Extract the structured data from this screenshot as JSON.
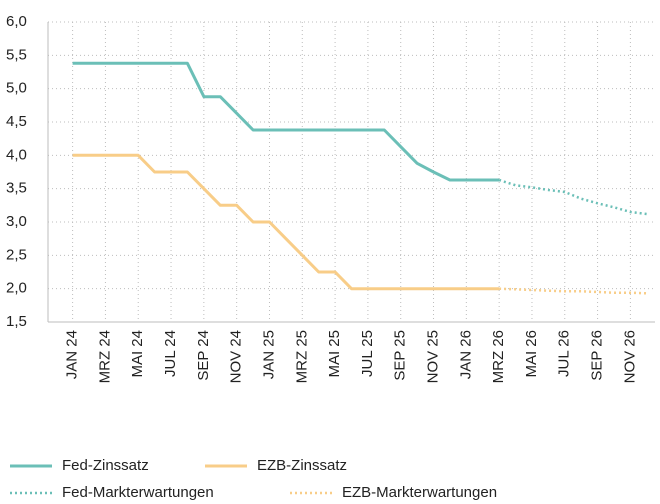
{
  "chart_data": {
    "type": "line",
    "categories": [
      null,
      "JAN 24",
      null,
      "MRZ 24",
      null,
      "MAI 24",
      null,
      "JUL 24",
      null,
      "SEP 24",
      null,
      "NOV 24",
      null,
      "JAN 25",
      null,
      "MRZ 25",
      null,
      "MAI 25",
      null,
      "JUL 25",
      null,
      "SEP 25",
      null,
      "NOV 25",
      null,
      "JAN 26",
      null,
      "MRZ 26",
      null,
      "MAI 26",
      null,
      "JUL 26",
      null,
      "SEP 26",
      null,
      "NOV 26",
      null
    ],
    "series": [
      {
        "name": "Fed-Zinssatz",
        "color": "#6bbfb7",
        "style": "solid",
        "values": [
          null,
          5.38,
          5.38,
          5.38,
          5.38,
          5.38,
          5.38,
          5.38,
          5.38,
          4.88,
          4.88,
          4.63,
          4.38,
          4.38,
          4.38,
          4.38,
          4.38,
          4.38,
          4.38,
          4.38,
          4.38,
          4.13,
          3.88,
          3.75,
          3.63,
          3.63,
          3.63,
          3.63,
          null,
          null,
          null,
          null,
          null,
          null,
          null,
          null,
          null
        ]
      },
      {
        "name": "EZB-Zinssatz",
        "color": "#f8cd88",
        "style": "solid",
        "values": [
          null,
          4.0,
          4.0,
          4.0,
          4.0,
          4.0,
          3.75,
          3.75,
          3.75,
          3.5,
          3.25,
          3.25,
          3.0,
          3.0,
          2.75,
          2.5,
          2.25,
          2.25,
          2.0,
          2.0,
          2.0,
          2.0,
          2.0,
          2.0,
          2.0,
          2.0,
          2.0,
          2.0,
          null,
          null,
          null,
          null,
          null,
          null,
          null,
          null,
          null
        ]
      },
      {
        "name": "Fed-Markterwartungen",
        "color": "#6bbfb7",
        "style": "dotted",
        "values": [
          null,
          null,
          null,
          null,
          null,
          null,
          null,
          null,
          null,
          null,
          null,
          null,
          null,
          null,
          null,
          null,
          null,
          null,
          null,
          null,
          null,
          null,
          null,
          null,
          null,
          null,
          null,
          3.63,
          3.55,
          3.52,
          3.48,
          3.45,
          3.35,
          3.28,
          3.22,
          3.15,
          3.12
        ]
      },
      {
        "name": "EZB-Markterwartungen",
        "color": "#f8cd88",
        "style": "dotted",
        "values": [
          null,
          null,
          null,
          null,
          null,
          null,
          null,
          null,
          null,
          null,
          null,
          null,
          null,
          null,
          null,
          null,
          null,
          null,
          null,
          null,
          null,
          null,
          null,
          null,
          null,
          null,
          null,
          2.0,
          1.99,
          1.98,
          1.97,
          1.96,
          1.96,
          1.95,
          1.94,
          1.94,
          1.93
        ]
      }
    ],
    "ylim": [
      1.5,
      6.0
    ],
    "yticks": [
      {
        "value": 1.5,
        "label": "1,5"
      },
      {
        "value": 2.0,
        "label": "2,0"
      },
      {
        "value": 2.5,
        "label": "2,5"
      },
      {
        "value": 3.0,
        "label": "3,0"
      },
      {
        "value": 3.5,
        "label": "3,5"
      },
      {
        "value": 4.0,
        "label": "4,0"
      },
      {
        "value": 4.5,
        "label": "4,5"
      },
      {
        "value": 5.0,
        "label": "5,0"
      },
      {
        "value": 5.5,
        "label": "5,5"
      },
      {
        "value": 6.0,
        "label": "6,0"
      }
    ],
    "grid": true
  }
}
